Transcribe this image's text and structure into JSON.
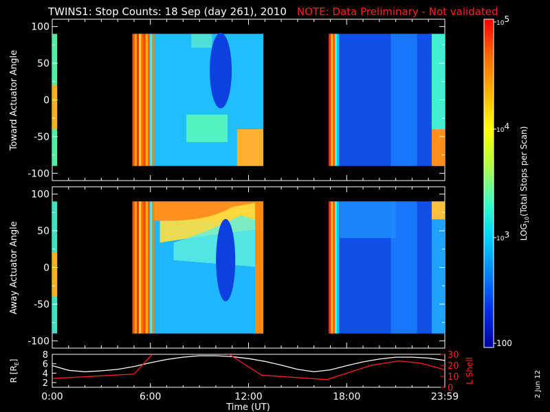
{
  "header": {
    "title": "TWINS1: Stop Counts: 18 Sep (day 261), 2010",
    "note": "NOTE: Data Preliminary - Not validated"
  },
  "chart_data": [
    {
      "type": "heatmap",
      "ylabel": "Toward Actuator Angle",
      "ylim": [
        -110,
        110
      ],
      "yticks": [
        "100",
        "50",
        "0",
        "-50",
        "-100"
      ],
      "xticks": [
        "0:00",
        "6:00",
        "12:00",
        "18:00",
        "23:59"
      ],
      "data_coverage_hours": [
        [
          0.0,
          0.3
        ],
        [
          4.9,
          12.9
        ],
        [
          16.9,
          24.0
        ]
      ],
      "angle_range": [
        -90,
        90
      ]
    },
    {
      "type": "heatmap",
      "ylabel": "Away Actuator Angle",
      "ylim": [
        -110,
        110
      ],
      "yticks": [
        "100",
        "50",
        "0",
        "-50",
        "-100"
      ],
      "xticks": [
        "0:00",
        "6:00",
        "12:00",
        "18:00",
        "23:59"
      ],
      "data_coverage_hours": [
        [
          0.0,
          0.3
        ],
        [
          4.9,
          12.9
        ],
        [
          16.9,
          24.0
        ]
      ],
      "angle_range": [
        -90,
        90
      ]
    },
    {
      "type": "line",
      "xlabel": "Time (UT)",
      "xticks": [
        "0:00",
        "6:00",
        "12:00",
        "18:00",
        "23:59"
      ],
      "left_axis": {
        "label": "R [R",
        "label_sub": "E",
        "label_end": "]",
        "ticks": [
          "8",
          "6",
          "4",
          "2"
        ],
        "ylim": [
          1,
          8
        ]
      },
      "right_axis": {
        "label": "L Shell",
        "ticks": [
          "30",
          "20",
          "10",
          "0"
        ],
        "ylim": [
          0,
          30
        ]
      },
      "series": [
        {
          "color": "#ffffff",
          "x": [
            0,
            1,
            2,
            3,
            4,
            5,
            6,
            7,
            8,
            9,
            10,
            11,
            12,
            13,
            14,
            15,
            16,
            17,
            18,
            19,
            20,
            21,
            22,
            23,
            24
          ],
          "values": [
            5.6,
            4.6,
            4.3,
            4.5,
            4.8,
            5.4,
            6.2,
            6.9,
            7.4,
            7.7,
            7.7,
            7.5,
            7.1,
            6.5,
            5.7,
            4.8,
            4.3,
            4.7,
            5.6,
            6.4,
            7.0,
            7.4,
            7.4,
            7.2,
            6.7
          ]
        },
        {
          "color": "#ff2020",
          "x": [
            0,
            5,
            6.3,
            10.5,
            12.8,
            16.8,
            19.5,
            21.2,
            22.5,
            24
          ],
          "values": [
            8,
            12,
            33,
            33,
            11,
            7,
            20,
            24,
            22,
            16
          ]
        }
      ]
    }
  ],
  "colorbar": {
    "label": "LOG",
    "label_sub": "10",
    "label_tail": "(Total Stops per Scan)",
    "ticks": [
      {
        "base": "10",
        "exp": "5"
      },
      {
        "base": "10",
        "exp": "4"
      },
      {
        "base": "10",
        "exp": "3"
      },
      {
        "text": "100"
      }
    ],
    "colors": [
      "#ff0000",
      "#ff6a00",
      "#ffb000",
      "#ffff00",
      "#b0ff40",
      "#40ffc0",
      "#00d0ff",
      "#0080ff",
      "#0030e0",
      "#0000a0"
    ]
  },
  "footer": {
    "date_stamp": "2 Jun 12"
  }
}
